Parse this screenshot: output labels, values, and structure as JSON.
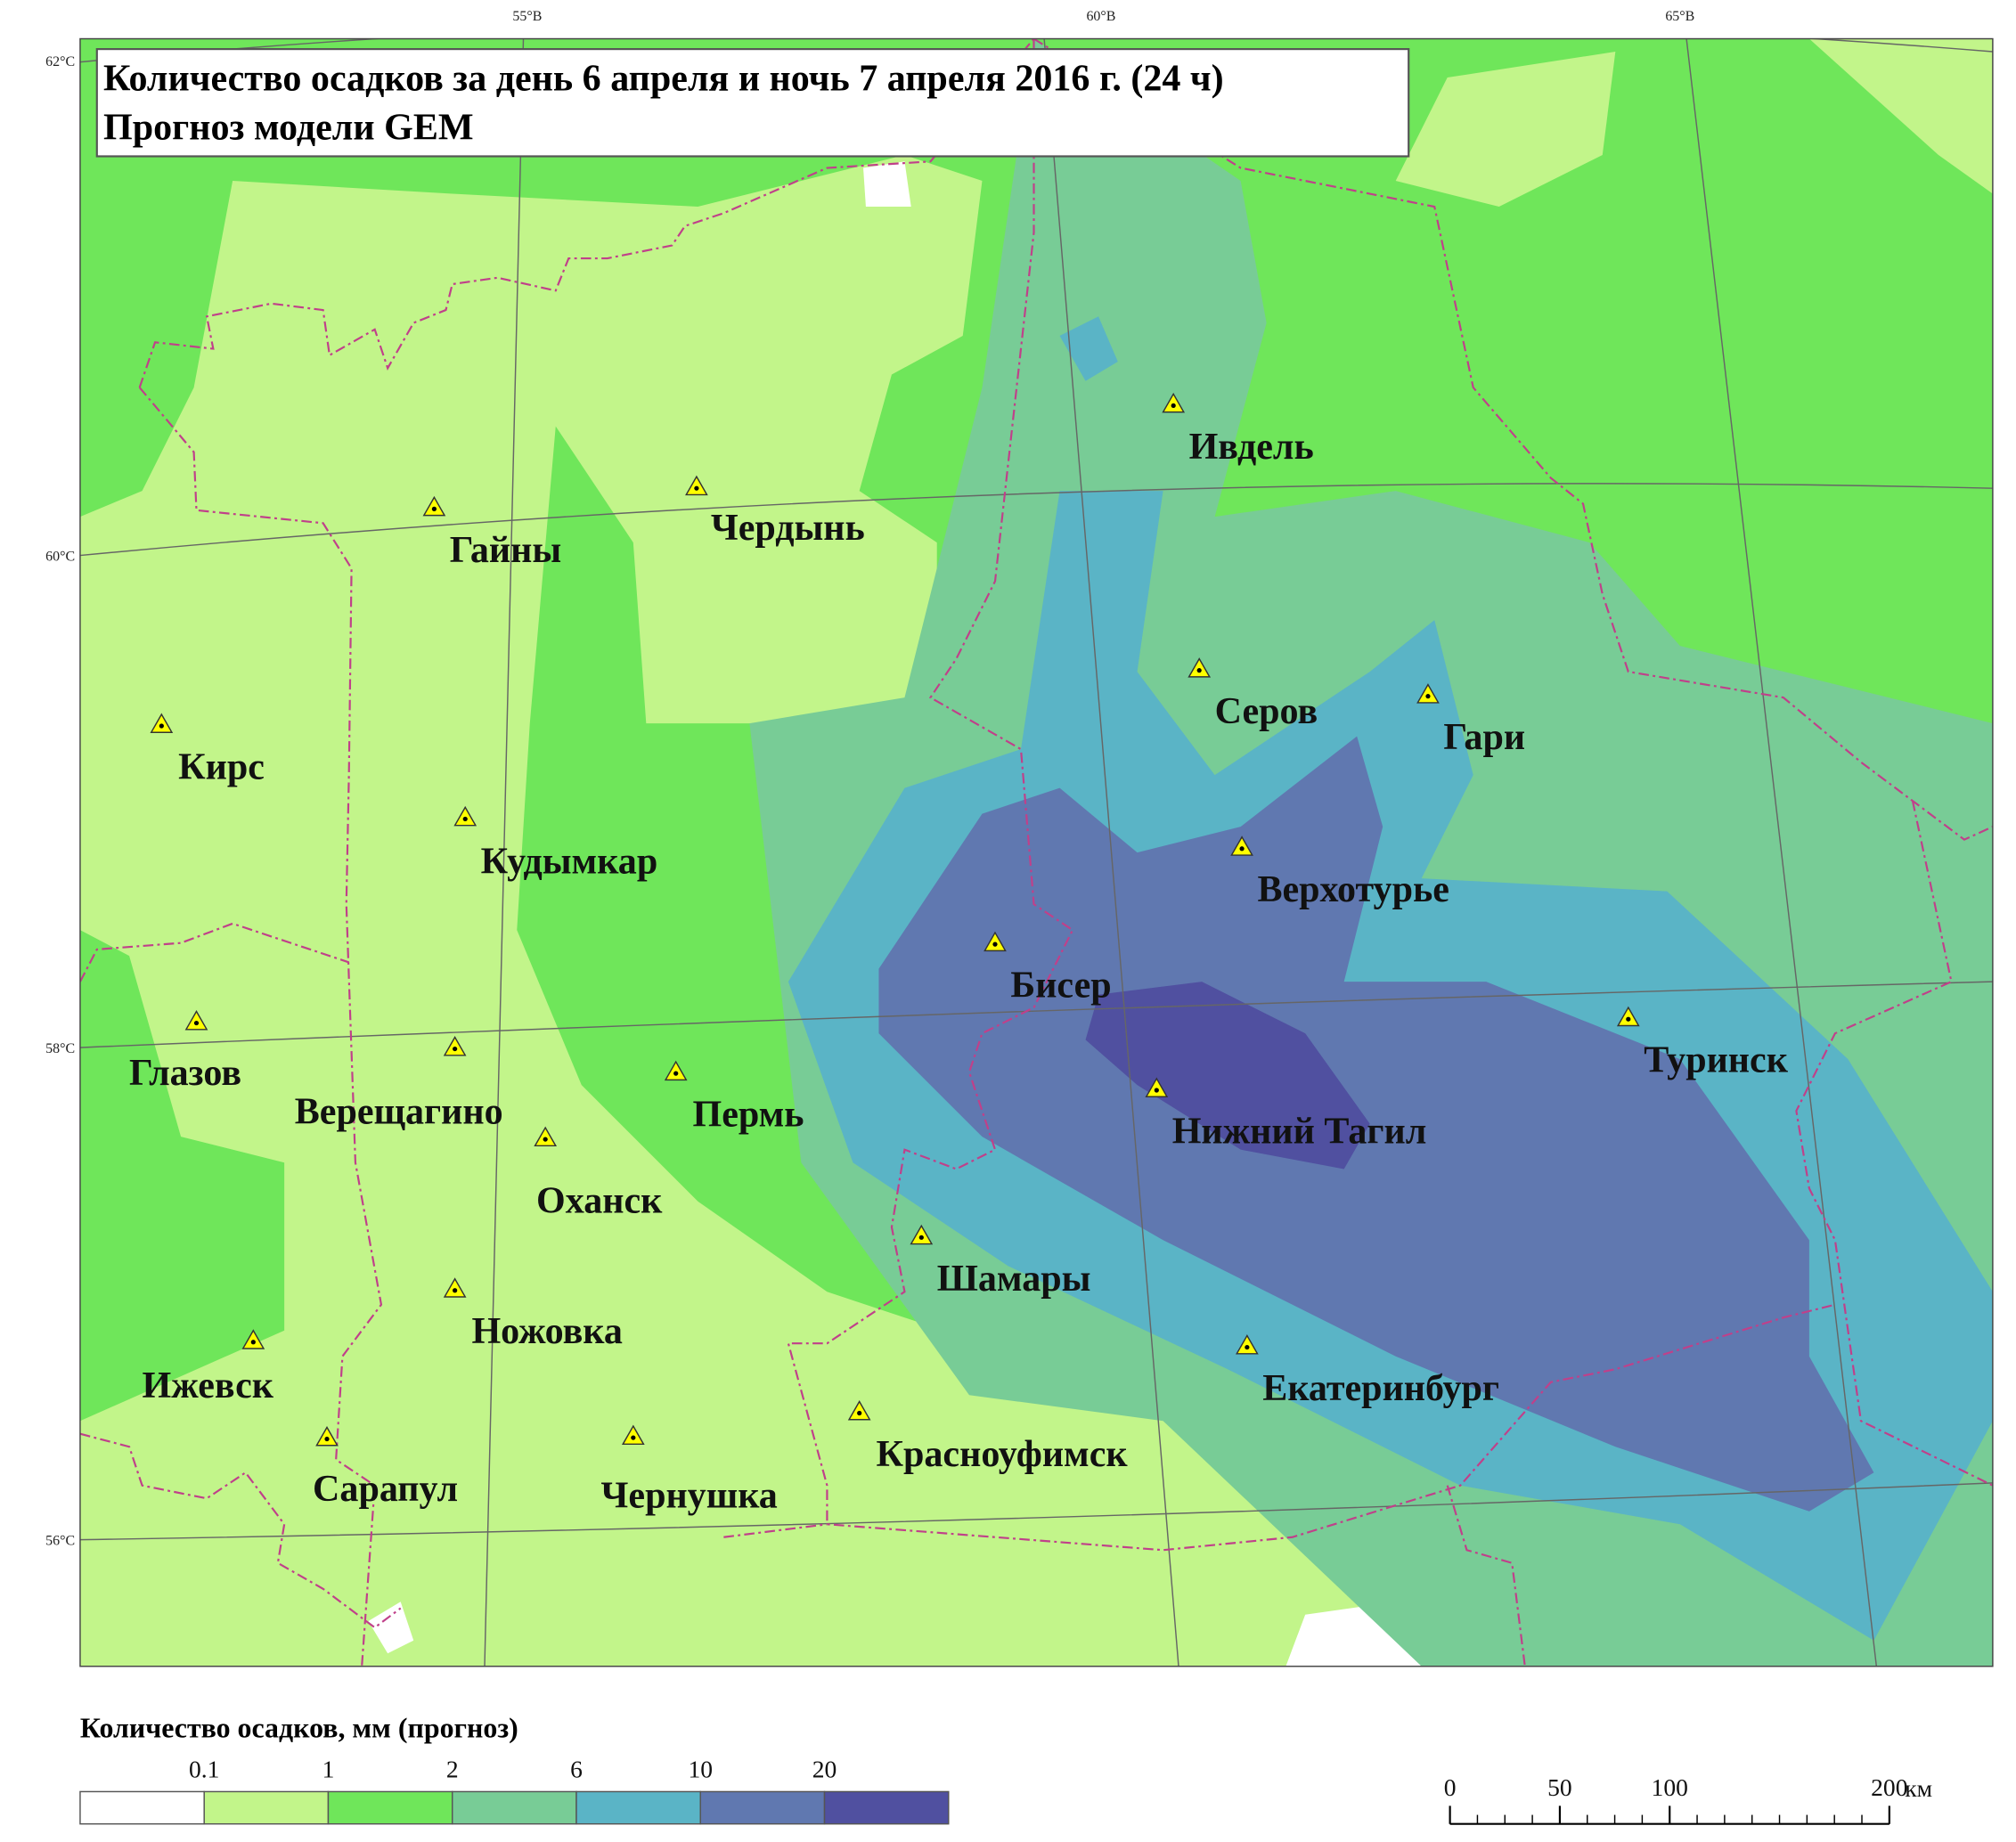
{
  "map": {
    "title": [
      "Количество осадков за день 6 апреля и ночь 7 апреля 2016 г. (24 ч)",
      "Прогноз модели GEM"
    ],
    "longitudes": [
      "55°В",
      "60°В",
      "65°В"
    ],
    "latitudes": [
      "62°С",
      "60°С",
      "58°С",
      "56°С"
    ],
    "cities": [
      "Ивдель",
      "Гайны",
      "Чердынь",
      "Серов",
      "Гари",
      "Кирс",
      "Кудымкар",
      "Верхотурье",
      "Бисер",
      "Глазов",
      "Верещагино",
      "Пермь",
      "Туринск",
      "Нижний Тагил",
      "Оханск",
      "Шамары",
      "Ножовка",
      "Ижевск",
      "Екатеринбург",
      "Красноуфимск",
      "Сарапул",
      "Чернушка"
    ],
    "marker_color": "#ffff00"
  },
  "legend": {
    "title": "Количество осадков, мм (прогноз)",
    "breaks": [
      0.1,
      1,
      2,
      6,
      10,
      20
    ],
    "colors": [
      "#ffffff",
      "#c2f58a",
      "#6fe65a",
      "#78cc96",
      "#5ab4c6",
      "#6078b0",
      "#5050a0"
    ]
  },
  "scale_bar": {
    "ticks": [
      0,
      50,
      100,
      200
    ],
    "unit": "км"
  }
}
